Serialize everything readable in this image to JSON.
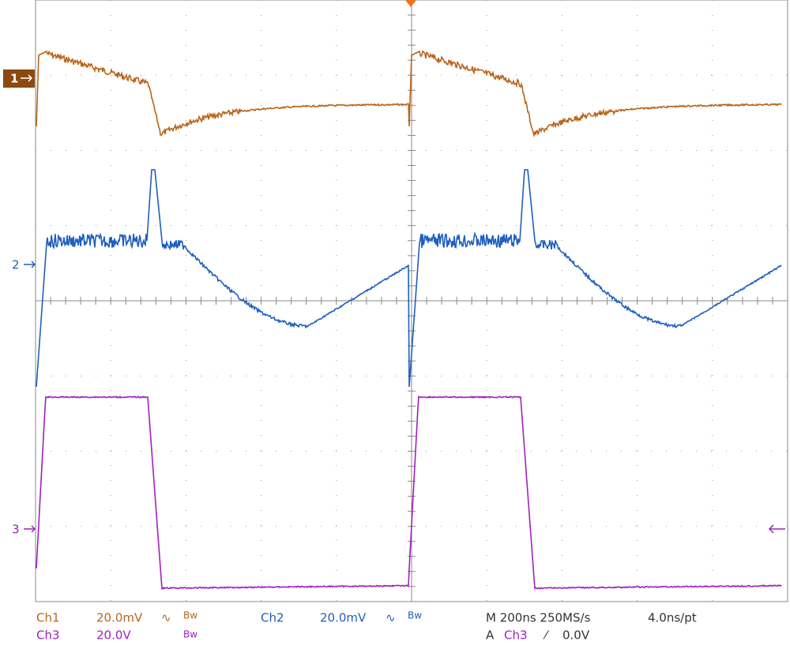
{
  "markers": {
    "ch1": "1",
    "ch2": "2",
    "ch3": "3"
  },
  "status": {
    "ch1_label": "Ch1",
    "ch1_scale": "20.0mV",
    "ch1_coupling": "∿",
    "ch1_bw": "Bw",
    "ch2_label": "Ch2",
    "ch2_scale": "20.0mV",
    "ch2_coupling": "∿",
    "ch2_bw": "Bw",
    "ch3_label": "Ch3",
    "ch3_scale": "20.0V",
    "ch3_bw": "Bw",
    "timebase": "M 200ns 250MS/s",
    "resolution": "4.0ns/pt",
    "trigger_label": "A",
    "trigger_source": "Ch3",
    "trigger_slope": "⁄",
    "trigger_level": "0.0V"
  }
}
